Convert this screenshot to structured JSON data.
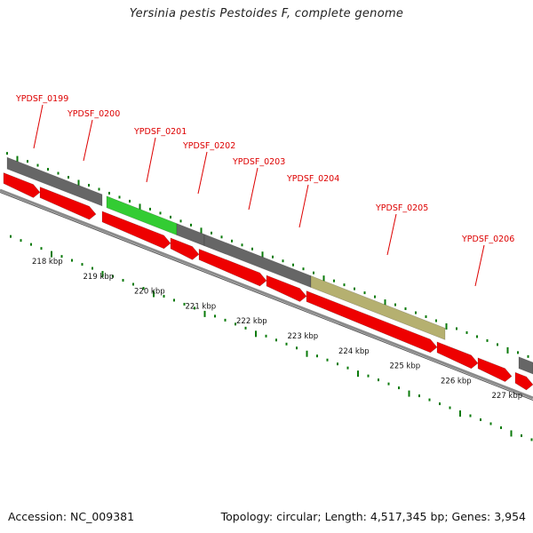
{
  "title": "Yersinia pestis Pestoides F, complete genome",
  "footer": {
    "accession": "Accession: NC_009381",
    "summary": "Topology: circular; Length: 4,517,345 bp; Genes: 3,954"
  },
  "colors": {
    "gene_label": "#dd0000",
    "label_leader": "#dd0000",
    "tick": "#0a7a0a",
    "cds": "#ee0000",
    "gene_gray": "#666666",
    "gene_green": "#33cc33",
    "gene_tan": "#b5b070",
    "backbone": "#8a8a8a"
  },
  "gene_labels": [
    "YPDSF_0199",
    "YPDSF_0200",
    "YPDSF_0201",
    "YPDSF_0202",
    "YPDSF_0203",
    "YPDSF_0204",
    "YPDSF_0205",
    "YPDSF_0206"
  ],
  "kbp_labels": [
    "218 kbp",
    "219 kbp",
    "220 kbp",
    "221 kbp",
    "222 kbp",
    "223 kbp",
    "224 kbp",
    "225 kbp",
    "226 kbp",
    "227 kbp"
  ]
}
